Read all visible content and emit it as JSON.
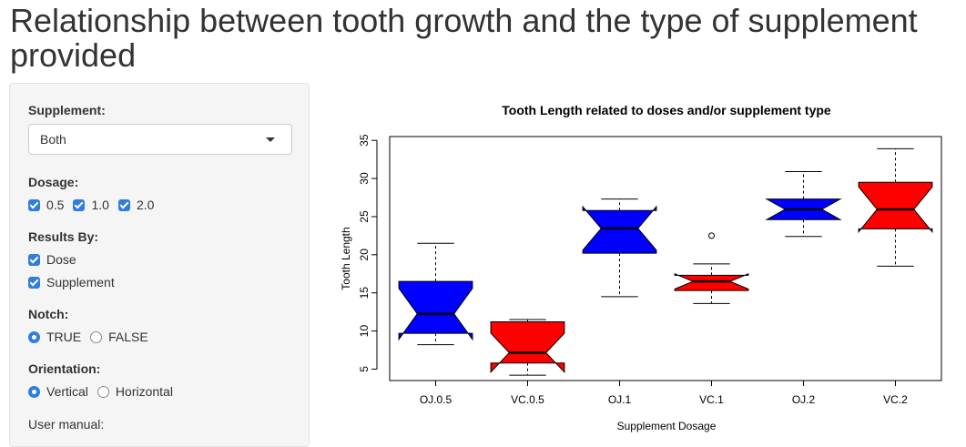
{
  "page": {
    "title": "Relationship between tooth growth and the type of supplement provided"
  },
  "sidebar": {
    "supplement": {
      "label": "Supplement:",
      "selected": "Both"
    },
    "dosage": {
      "label": "Dosage:",
      "options": [
        {
          "label": "0.5",
          "checked": true
        },
        {
          "label": "1.0",
          "checked": true
        },
        {
          "label": "2.0",
          "checked": true
        }
      ]
    },
    "results_by": {
      "label": "Results By:",
      "options": [
        {
          "label": "Dose",
          "checked": true
        },
        {
          "label": "Supplement",
          "checked": true
        }
      ]
    },
    "notch": {
      "label": "Notch:",
      "options": [
        {
          "label": "TRUE",
          "selected": true
        },
        {
          "label": "FALSE",
          "selected": false
        }
      ]
    },
    "orientation": {
      "label": "Orientation:",
      "options": [
        {
          "label": "Vertical",
          "selected": true
        },
        {
          "label": "Horizontal",
          "selected": false
        }
      ]
    },
    "user_manual": {
      "label": "User manual:"
    }
  },
  "colors": {
    "oj": "#0000ff",
    "vc": "#ff0000",
    "accent": "#2f7de1"
  },
  "chart_data": {
    "type": "boxplot",
    "title": "Tooth Length related to doses and/or supplement type",
    "xlabel": "Supplement Dosage",
    "ylabel": "Tooth Length",
    "ylim": [
      3.5,
      35.5
    ],
    "yticks": [
      5,
      10,
      15,
      20,
      25,
      30,
      35
    ],
    "notch": true,
    "boxes": [
      {
        "label": "OJ.0.5",
        "color": "oj",
        "whisker_low": 8.2,
        "q1": 9.7,
        "median": 12.25,
        "q3": 16.5,
        "whisker_high": 21.5,
        "notch_low": 8.9,
        "notch_high": 15.6,
        "outliers": []
      },
      {
        "label": "VC.0.5",
        "color": "vc",
        "whisker_low": 4.2,
        "q1": 5.8,
        "median": 7.15,
        "q3": 11.2,
        "whisker_high": 11.5,
        "notch_low": 4.6,
        "notch_high": 9.7,
        "outliers": []
      },
      {
        "label": "OJ.1",
        "color": "oj",
        "whisker_low": 14.5,
        "q1": 20.2,
        "median": 23.45,
        "q3": 25.8,
        "whisker_high": 27.3,
        "notch_low": 20.6,
        "notch_high": 26.3,
        "outliers": []
      },
      {
        "label": "VC.1",
        "color": "vc",
        "whisker_low": 13.6,
        "q1": 15.3,
        "median": 16.5,
        "q3": 17.3,
        "whisker_high": 18.8,
        "notch_low": 15.5,
        "notch_high": 17.5,
        "outliers": [
          22.5
        ]
      },
      {
        "label": "OJ.2",
        "color": "oj",
        "whisker_low": 22.4,
        "q1": 24.6,
        "median": 25.95,
        "q3": 27.3,
        "whisker_high": 30.9,
        "notch_low": 24.6,
        "notch_high": 27.3,
        "outliers": []
      },
      {
        "label": "VC.2",
        "color": "vc",
        "whisker_low": 18.5,
        "q1": 23.4,
        "median": 25.95,
        "q3": 29.5,
        "whisker_high": 33.9,
        "notch_low": 23.0,
        "notch_high": 28.9,
        "outliers": []
      }
    ]
  }
}
